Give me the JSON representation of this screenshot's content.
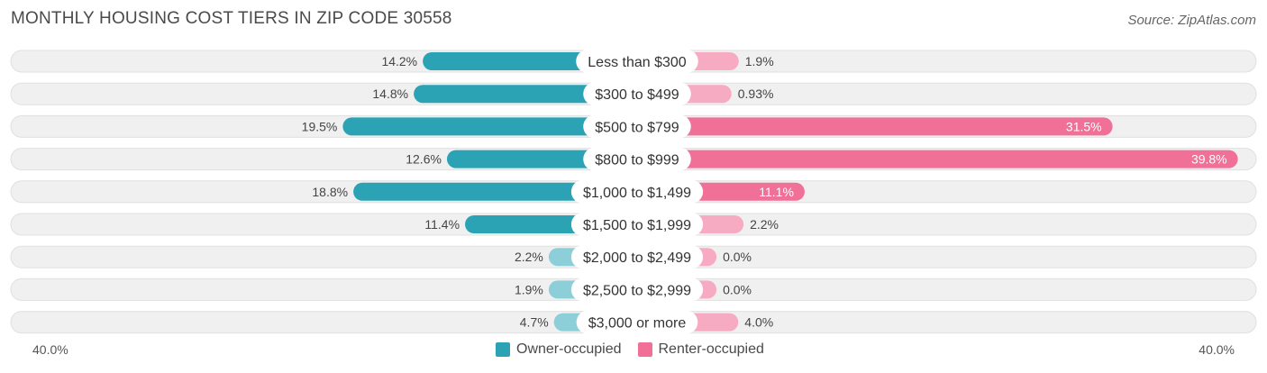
{
  "title": "MONTHLY HOUSING COST TIERS IN ZIP CODE 30558",
  "source": "Source: ZipAtlas.com",
  "axis": {
    "left_label": "40.0%",
    "right_label": "40.0%"
  },
  "legend": {
    "owner_label": "Owner-occupied",
    "renter_label": "Renter-occupied"
  },
  "colors": {
    "owner_strong": "#2ba3b5",
    "owner_light": "#8dcfd8",
    "renter_strong": "#f07098",
    "renter_light": "#f7abc3",
    "track": "#f0f0f0",
    "track_border": "#e0e0e0"
  },
  "chart_data": {
    "type": "bar",
    "orientation": "diverging-horizontal",
    "categories": [
      "Less than $300",
      "$300 to $499",
      "$500 to $799",
      "$800 to $999",
      "$1,000 to $1,499",
      "$1,500 to $1,999",
      "$2,000 to $2,499",
      "$2,500 to $2,999",
      "$3,000 or more"
    ],
    "series": [
      {
        "name": "Owner-occupied",
        "values": [
          14.2,
          14.8,
          19.5,
          12.6,
          18.8,
          11.4,
          2.2,
          1.9,
          4.7
        ],
        "labels": [
          "14.2%",
          "14.8%",
          "19.5%",
          "12.6%",
          "18.8%",
          "11.4%",
          "2.2%",
          "1.9%",
          "4.7%"
        ]
      },
      {
        "name": "Renter-occupied",
        "values": [
          1.9,
          0.93,
          31.5,
          39.8,
          11.1,
          2.2,
          0.0,
          0.0,
          4.0
        ],
        "labels": [
          "1.9%",
          "0.93%",
          "31.5%",
          "39.8%",
          "11.1%",
          "2.2%",
          "0.0%",
          "0.0%",
          "4.0%"
        ]
      }
    ],
    "xlim": [
      -40,
      40
    ],
    "legend_position": "bottom-center"
  }
}
